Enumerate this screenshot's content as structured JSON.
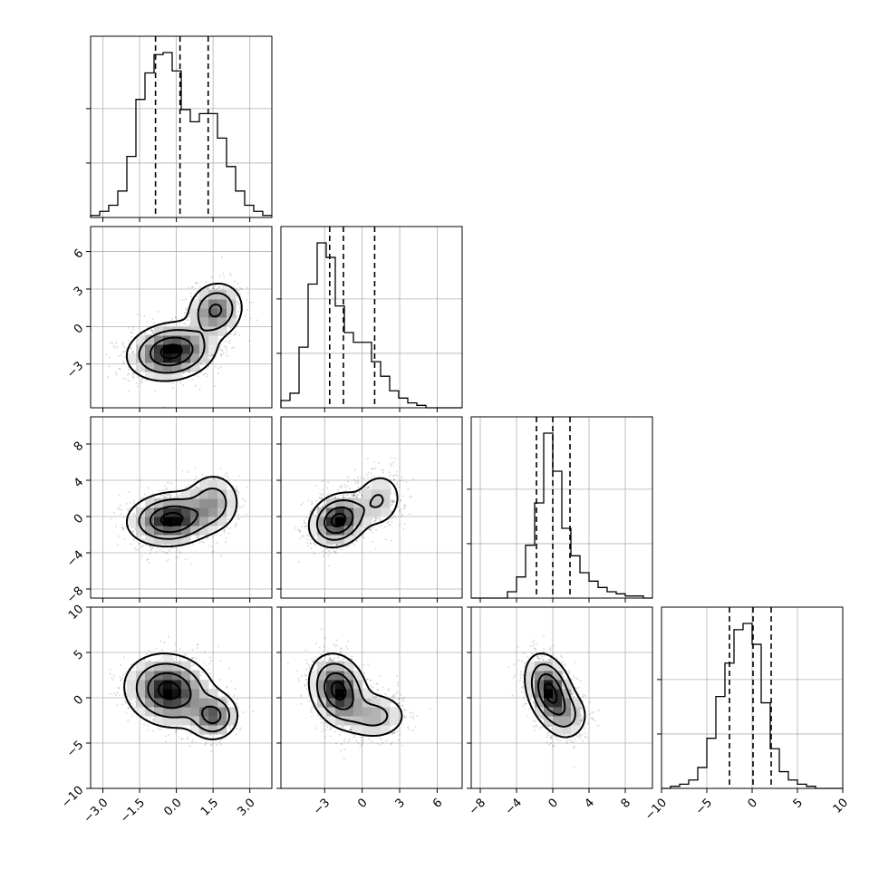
{
  "chart_data": {
    "type": "corner",
    "title": "",
    "grid": true,
    "colors": {
      "marks": "#000000",
      "grid": "#b0b0b0",
      "background": "#ffffff"
    },
    "parameters": [
      {
        "label": "",
        "range": [
          -3.5,
          3.9
        ],
        "ticks": [
          -3.0,
          -1.5,
          0.0,
          1.5,
          3.0
        ],
        "tick_labels": [
          "−3.0",
          "−1.5",
          "0.0",
          "1.5",
          "3.0"
        ]
      },
      {
        "label": "",
        "range": [
          -6.5,
          8.0
        ],
        "ticks": [
          -3,
          0,
          3,
          6
        ],
        "tick_labels": [
          "−3",
          "0",
          "3",
          "6"
        ]
      },
      {
        "label": "",
        "range": [
          -9.0,
          11.0
        ],
        "ticks": [
          -8,
          -4,
          0,
          4,
          8
        ],
        "tick_labels": [
          "−8",
          "−4",
          "0",
          "4",
          "8"
        ]
      },
      {
        "label": "",
        "range": [
          -10.0,
          10.0
        ],
        "ticks": [
          -10,
          -5,
          0,
          5,
          10
        ],
        "tick_labels": [
          "−10",
          "−5",
          "0",
          "5",
          "10"
        ]
      }
    ],
    "quantiles": [
      [
        -0.85,
        0.15,
        1.3
      ],
      [
        -2.6,
        -1.5,
        1.0
      ],
      [
        -1.8,
        0.0,
        1.9
      ],
      [
        -2.5,
        0.1,
        2.1
      ]
    ],
    "histograms": [
      {
        "bin_start": -3.5,
        "bin_width": 0.37,
        "counts": [
          1,
          3,
          6,
          13,
          30,
          58,
          71,
          80,
          81,
          72,
          53,
          47,
          51,
          51,
          39,
          25,
          13,
          6,
          3,
          1
        ]
      },
      {
        "bin_start": -6.5,
        "bin_width": 0.725,
        "counts": [
          3,
          6,
          25,
          51,
          68,
          62,
          42,
          31,
          27,
          27,
          19,
          13,
          7,
          4,
          2,
          1,
          0,
          0,
          0,
          0
        ]
      },
      {
        "bin_start": -9.0,
        "bin_width": 1.0,
        "counts": [
          0,
          0,
          0,
          0,
          3,
          10,
          25,
          45,
          78,
          60,
          33,
          20,
          12,
          8,
          5,
          3,
          2,
          1,
          1,
          0
        ]
      },
      {
        "bin_start": -10.0,
        "bin_width": 1.0,
        "counts": [
          0,
          1,
          2,
          4,
          10,
          24,
          44,
          60,
          76,
          79,
          69,
          41,
          19,
          8,
          4,
          2,
          1,
          0,
          0,
          0
        ]
      }
    ],
    "joint": [
      {
        "x": 0,
        "y": 1,
        "components": [
          {
            "mx": -0.2,
            "my": -2.0,
            "sx": 0.85,
            "sy": 1.1,
            "r": 0.15,
            "w": 0.7
          },
          {
            "mx": 1.6,
            "my": 1.3,
            "sx": 0.55,
            "sy": 1.1,
            "r": 0.1,
            "w": 0.3
          }
        ]
      },
      {
        "x": 0,
        "y": 2,
        "components": [
          {
            "mx": -0.2,
            "my": -0.3,
            "sx": 0.85,
            "sy": 1.4,
            "r": 0.1,
            "w": 0.75
          },
          {
            "mx": 1.5,
            "my": 1.6,
            "sx": 0.55,
            "sy": 1.6,
            "r": 0.0,
            "w": 0.25
          }
        ]
      },
      {
        "x": 1,
        "y": 2,
        "components": [
          {
            "mx": -1.9,
            "my": -0.4,
            "sx": 1.1,
            "sy": 1.4,
            "r": 0.2,
            "w": 0.75
          },
          {
            "mx": 1.3,
            "my": 1.8,
            "sx": 1.0,
            "sy": 1.6,
            "r": 0.1,
            "w": 0.25
          }
        ]
      },
      {
        "x": 0,
        "y": 3,
        "components": [
          {
            "mx": -0.3,
            "my": 0.8,
            "sx": 0.85,
            "sy": 1.9,
            "r": -0.1,
            "w": 0.78
          },
          {
            "mx": 1.5,
            "my": -2.0,
            "sx": 0.5,
            "sy": 1.3,
            "r": 0.0,
            "w": 0.22
          }
        ]
      },
      {
        "x": 1,
        "y": 3,
        "components": [
          {
            "mx": -1.9,
            "my": 0.8,
            "sx": 1.1,
            "sy": 1.9,
            "r": -0.2,
            "w": 0.75
          },
          {
            "mx": 1.0,
            "my": -2.0,
            "sx": 1.3,
            "sy": 1.3,
            "r": 0.0,
            "w": 0.25
          }
        ]
      },
      {
        "x": 2,
        "y": 3,
        "components": [
          {
            "mx": -0.3,
            "my": 0.6,
            "sx": 1.3,
            "sy": 2.0,
            "r": -0.35,
            "w": 0.85
          },
          {
            "mx": 1.8,
            "my": -2.0,
            "sx": 1.2,
            "sy": 1.4,
            "r": 0.0,
            "w": 0.15
          }
        ]
      }
    ]
  }
}
